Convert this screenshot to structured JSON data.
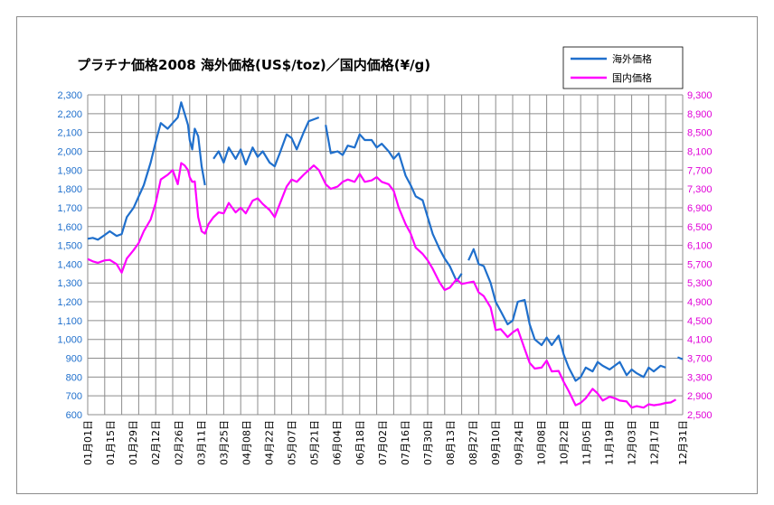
{
  "chart_data": {
    "type": "line",
    "title": "プラチナ価格2008 海外価格(US$/toz)／国内価格(¥/g)",
    "legend_position": "top-right",
    "grid": true,
    "colors": {
      "overseas": "#1f6fcc",
      "domestic": "#ff00ff",
      "grid": "#8c8c8c"
    },
    "y_left": {
      "min": 600,
      "max": 2300,
      "ticks": [
        "600",
        "700",
        "800",
        "900",
        "1,000",
        "1,100",
        "1,200",
        "1,300",
        "1,400",
        "1,500",
        "1,600",
        "1,700",
        "1,800",
        "1,900",
        "2,000",
        "2,100",
        "2,200",
        "2,300"
      ]
    },
    "y_right": {
      "min": 2500,
      "max": 9300,
      "ticks": [
        "2,500",
        "2,900",
        "3,300",
        "3,700",
        "4,100",
        "4,500",
        "4,900",
        "5,300",
        "5,700",
        "6,100",
        "6,500",
        "6,900",
        "7,300",
        "7,700",
        "8,100",
        "8,500",
        "8,900",
        "9,300"
      ]
    },
    "x_labels": [
      "01月01日",
      "01月15日",
      "01月29日",
      "02月12日",
      "02月26日",
      "03月11日",
      "03月25日",
      "04月08日",
      "04月22日",
      "05月07日",
      "05月21日",
      "06月04日",
      "06月18日",
      "07月02日",
      "07月16日",
      "07月30日",
      "08月13日",
      "08月27日",
      "09月10日",
      "09月24日",
      "10月08日",
      "10月22日",
      "11月05日",
      "11月19日",
      "12月03日",
      "12月17日",
      "12月31日"
    ],
    "series": [
      {
        "name": "海外価格",
        "axis": "left",
        "segments": [
          [
            [
              0,
              1535
            ],
            [
              0.3,
              1540
            ],
            [
              0.6,
              1530
            ],
            [
              1.0,
              1555
            ],
            [
              1.3,
              1575
            ],
            [
              1.7,
              1550
            ],
            [
              2.0,
              1560
            ],
            [
              2.3,
              1650
            ],
            [
              2.7,
              1700
            ],
            [
              3.0,
              1760
            ],
            [
              3.3,
              1820
            ],
            [
              3.7,
              1940
            ],
            [
              4.0,
              2050
            ],
            [
              4.3,
              2150
            ],
            [
              4.7,
              2120
            ],
            [
              5.0,
              2150
            ],
            [
              5.3,
              2180
            ],
            [
              5.5,
              2260
            ],
            [
              5.7,
              2200
            ],
            [
              5.9,
              2140
            ],
            [
              6.0,
              2060
            ],
            [
              6.15,
              2010
            ],
            [
              6.3,
              2120
            ],
            [
              6.5,
              2080
            ],
            [
              6.7,
              1920
            ],
            [
              6.9,
              1820
            ]
          ],
          [
            [
              7.4,
              1960
            ],
            [
              7.7,
              2000
            ],
            [
              8.0,
              1940
            ],
            [
              8.3,
              2020
            ],
            [
              8.7,
              1960
            ],
            [
              9.0,
              2010
            ],
            [
              9.3,
              1930
            ],
            [
              9.7,
              2020
            ],
            [
              10.0,
              1970
            ],
            [
              10.3,
              2000
            ],
            [
              10.7,
              1940
            ],
            [
              11.0,
              1920
            ],
            [
              11.3,
              1990
            ],
            [
              11.7,
              2090
            ],
            [
              12.0,
              2070
            ],
            [
              12.3,
              2010
            ],
            [
              12.7,
              2100
            ],
            [
              13.0,
              2160
            ],
            [
              13.3,
              2170
            ],
            [
              13.6,
              2180
            ]
          ],
          [
            [
              14.0,
              2140
            ],
            [
              14.3,
              1990
            ],
            [
              14.7,
              2000
            ],
            [
              15.0,
              1980
            ],
            [
              15.3,
              2030
            ],
            [
              15.7,
              2020
            ],
            [
              16.0,
              2090
            ],
            [
              16.3,
              2060
            ],
            [
              16.7,
              2060
            ],
            [
              17.0,
              2020
            ],
            [
              17.3,
              2040
            ],
            [
              17.7,
              2000
            ],
            [
              18.0,
              1960
            ],
            [
              18.3,
              1990
            ],
            [
              18.7,
              1870
            ],
            [
              19.0,
              1820
            ],
            [
              19.3,
              1760
            ],
            [
              19.7,
              1740
            ],
            [
              20.0,
              1650
            ],
            [
              20.3,
              1560
            ],
            [
              20.7,
              1480
            ],
            [
              21.0,
              1430
            ],
            [
              21.3,
              1390
            ],
            [
              21.7,
              1310
            ],
            [
              22.0,
              1350
            ]
          ],
          [
            [
              22.4,
              1420
            ],
            [
              22.7,
              1480
            ],
            [
              23.0,
              1400
            ],
            [
              23.3,
              1390
            ],
            [
              23.7,
              1300
            ],
            [
              24.0,
              1200
            ],
            [
              24.3,
              1150
            ],
            [
              24.7,
              1080
            ],
            [
              25.0,
              1100
            ],
            [
              25.3,
              1200
            ],
            [
              25.7,
              1210
            ],
            [
              26.0,
              1080
            ],
            [
              26.3,
              1000
            ],
            [
              26.7,
              970
            ],
            [
              27.0,
              1010
            ],
            [
              27.3,
              970
            ],
            [
              27.7,
              1020
            ],
            [
              28.0,
              920
            ],
            [
              28.3,
              850
            ],
            [
              28.7,
              780
            ],
            [
              29.0,
              800
            ],
            [
              29.3,
              850
            ],
            [
              29.7,
              830
            ],
            [
              30.0,
              880
            ],
            [
              30.3,
              860
            ],
            [
              30.7,
              840
            ],
            [
              31.0,
              860
            ],
            [
              31.3,
              880
            ],
            [
              31.7,
              810
            ],
            [
              32.0,
              840
            ],
            [
              32.3,
              820
            ],
            [
              32.7,
              800
            ],
            [
              33.0,
              850
            ],
            [
              33.3,
              830
            ],
            [
              33.7,
              860
            ],
            [
              34.0,
              850
            ]
          ],
          [
            [
              34.7,
              905
            ],
            [
              35.0,
              895
            ]
          ]
        ]
      },
      {
        "name": "国内価格",
        "axis": "right",
        "segments": [
          [
            [
              0,
              5810
            ],
            [
              0.3,
              5760
            ],
            [
              0.6,
              5730
            ],
            [
              1.0,
              5780
            ],
            [
              1.3,
              5790
            ],
            [
              1.7,
              5700
            ],
            [
              2.0,
              5520
            ],
            [
              2.3,
              5820
            ],
            [
              2.7,
              6000
            ],
            [
              3.0,
              6150
            ],
            [
              3.3,
              6400
            ],
            [
              3.7,
              6650
            ],
            [
              4.0,
              7000
            ],
            [
              4.3,
              7500
            ],
            [
              4.7,
              7600
            ],
            [
              5.0,
              7700
            ],
            [
              5.3,
              7400
            ],
            [
              5.5,
              7850
            ],
            [
              5.7,
              7800
            ],
            [
              5.9,
              7700
            ],
            [
              6.0,
              7550
            ],
            [
              6.15,
              7450
            ],
            [
              6.3,
              7460
            ],
            [
              6.5,
              6700
            ],
            [
              6.7,
              6400
            ],
            [
              6.9,
              6350
            ],
            [
              7.1,
              6550
            ],
            [
              7.4,
              6700
            ],
            [
              7.7,
              6800
            ],
            [
              8.0,
              6780
            ],
            [
              8.3,
              7000
            ],
            [
              8.7,
              6800
            ],
            [
              9.0,
              6900
            ],
            [
              9.3,
              6780
            ],
            [
              9.7,
              7050
            ],
            [
              10.0,
              7100
            ],
            [
              10.3,
              6980
            ],
            [
              10.7,
              6850
            ],
            [
              11.0,
              6700
            ],
            [
              11.3,
              6980
            ],
            [
              11.7,
              7350
            ],
            [
              12.0,
              7500
            ],
            [
              12.3,
              7450
            ],
            [
              12.7,
              7600
            ],
            [
              13.0,
              7700
            ],
            [
              13.3,
              7800
            ],
            [
              13.6,
              7700
            ],
            [
              14.0,
              7400
            ],
            [
              14.3,
              7300
            ],
            [
              14.7,
              7350
            ],
            [
              15.0,
              7450
            ],
            [
              15.3,
              7500
            ],
            [
              15.7,
              7450
            ],
            [
              16.0,
              7620
            ],
            [
              16.3,
              7450
            ],
            [
              16.7,
              7480
            ],
            [
              17.0,
              7550
            ],
            [
              17.3,
              7450
            ],
            [
              17.7,
              7400
            ],
            [
              18.0,
              7260
            ],
            [
              18.3,
              6900
            ],
            [
              18.7,
              6550
            ],
            [
              19.0,
              6350
            ],
            [
              19.3,
              6050
            ],
            [
              19.7,
              5920
            ],
            [
              20.0,
              5780
            ],
            [
              20.3,
              5600
            ],
            [
              20.7,
              5310
            ],
            [
              21.0,
              5150
            ],
            [
              21.3,
              5200
            ],
            [
              21.7,
              5380
            ],
            [
              22.0,
              5280
            ],
            [
              22.3,
              5300
            ],
            [
              22.7,
              5330
            ],
            [
              23.0,
              5100
            ],
            [
              23.3,
              5020
            ],
            [
              23.7,
              4780
            ],
            [
              24.0,
              4300
            ],
            [
              24.3,
              4320
            ],
            [
              24.7,
              4150
            ],
            [
              25.0,
              4250
            ],
            [
              25.3,
              4320
            ],
            [
              25.7,
              3900
            ],
            [
              26.0,
              3600
            ],
            [
              26.3,
              3480
            ],
            [
              26.7,
              3500
            ],
            [
              27.0,
              3650
            ],
            [
              27.3,
              3420
            ],
            [
              27.7,
              3430
            ],
            [
              28.0,
              3200
            ],
            [
              28.3,
              3000
            ],
            [
              28.7,
              2700
            ],
            [
              29.0,
              2750
            ],
            [
              29.3,
              2850
            ],
            [
              29.7,
              3050
            ],
            [
              30.0,
              2950
            ],
            [
              30.3,
              2800
            ],
            [
              30.7,
              2880
            ],
            [
              31.0,
              2850
            ],
            [
              31.3,
              2800
            ],
            [
              31.7,
              2780
            ],
            [
              32.0,
              2650
            ],
            [
              32.3,
              2680
            ],
            [
              32.7,
              2650
            ],
            [
              33.0,
              2720
            ],
            [
              33.3,
              2700
            ],
            [
              33.7,
              2720
            ],
            [
              34.0,
              2750
            ],
            [
              34.3,
              2760
            ],
            [
              34.6,
              2820
            ]
          ]
        ]
      }
    ]
  }
}
